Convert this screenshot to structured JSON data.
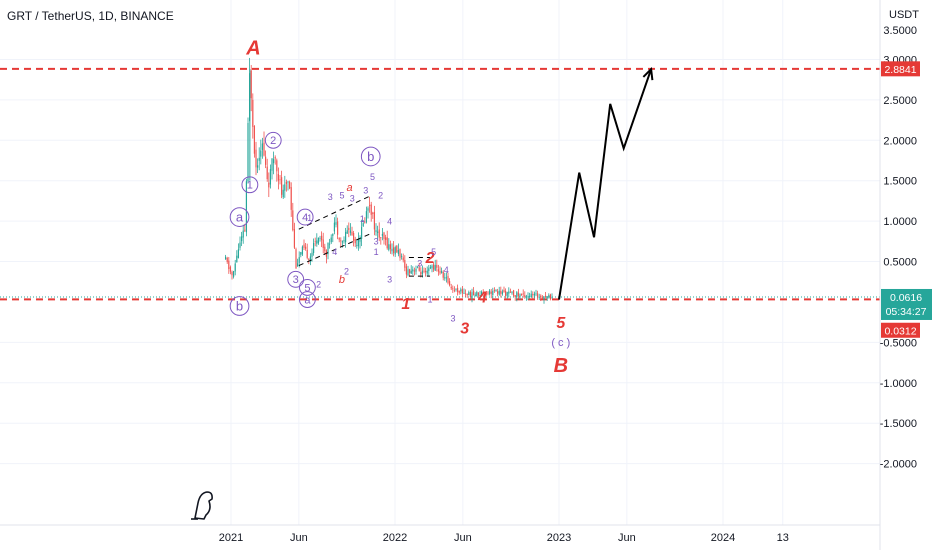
{
  "header": {
    "symbol_title": "GRT / TetherUS, 1D, BINANCE",
    "currency_unit": "USDT"
  },
  "price_badges": {
    "resistance_level": "2.8841",
    "last_price": "0.0616",
    "countdown": "05:34:27",
    "support_level": "0.0312"
  },
  "colors": {
    "background": "#ffffff",
    "candle_up": "#26a69a",
    "candle_down": "#ef5350",
    "level_line": "#e53935",
    "wave_purple": "#7e57c2",
    "wave_red": "#e53935",
    "projection": "#000000"
  },
  "chart_data": {
    "type": "candlestick",
    "symbol": "GRT / TetherUS",
    "interval": "1D",
    "exchange": "BINANCE",
    "y_axis": {
      "unit": "USDT",
      "ylim": [
        -2.45,
        3.55
      ],
      "tick_labels": [
        "3.0000",
        "2.5000",
        "2.0000",
        "1.5000",
        "1.0000",
        "0.5000",
        "-0.5000",
        "-1.0000",
        "-1.5000",
        "-2.0000"
      ],
      "tick_values": [
        3.0,
        2.5,
        2.0,
        1.5,
        1.0,
        0.5,
        -0.5,
        -1.0,
        -1.5,
        -2.0
      ],
      "top_partial_label": "3.5000"
    },
    "x_axis": {
      "tick_labels": [
        "2021",
        "Jun",
        "2022",
        "Jun",
        "2023",
        "Jun",
        "2024",
        "13"
      ],
      "tick_dates": [
        "2021-01-01",
        "2021-06-01",
        "2022-01-01",
        "2022-06-01",
        "2023-01-01",
        "2023-06-01",
        "2024-01-01",
        "2024-05-13"
      ]
    },
    "price_path": [
      [
        "2020-12-20",
        0.52
      ],
      [
        "2021-01-05",
        0.3
      ],
      [
        "2021-01-15",
        0.62
      ],
      [
        "2021-02-01",
        0.9
      ],
      [
        "2021-02-12",
        2.88
      ],
      [
        "2021-02-25",
        1.65
      ],
      [
        "2021-03-10",
        2.0
      ],
      [
        "2021-03-25",
        1.45
      ],
      [
        "2021-04-08",
        1.85
      ],
      [
        "2021-04-25",
        1.3
      ],
      [
        "2021-05-10",
        1.55
      ],
      [
        "2021-05-25",
        0.45
      ],
      [
        "2021-06-10",
        0.65
      ],
      [
        "2021-06-25",
        0.55
      ],
      [
        "2021-07-15",
        0.85
      ],
      [
        "2021-08-01",
        0.6
      ],
      [
        "2021-08-20",
        1.0
      ],
      [
        "2021-09-05",
        0.72
      ],
      [
        "2021-09-20",
        0.92
      ],
      [
        "2021-10-05",
        0.72
      ],
      [
        "2021-10-20",
        0.9
      ],
      [
        "2021-11-05",
        1.25
      ],
      [
        "2021-11-20",
        0.85
      ],
      [
        "2021-12-05",
        0.78
      ],
      [
        "2021-12-25",
        0.65
      ],
      [
        "2022-01-10",
        0.62
      ],
      [
        "2022-01-25",
        0.38
      ],
      [
        "2022-02-15",
        0.42
      ],
      [
        "2022-03-10",
        0.33
      ],
      [
        "2022-03-25",
        0.45
      ],
      [
        "2022-04-10",
        0.38
      ],
      [
        "2022-04-25",
        0.28
      ],
      [
        "2022-05-10",
        0.16
      ],
      [
        "2022-05-25",
        0.14
      ],
      [
        "2022-06-15",
        0.09
      ],
      [
        "2022-07-05",
        0.1
      ],
      [
        "2022-08-01",
        0.13
      ],
      [
        "2022-09-01",
        0.11
      ],
      [
        "2022-10-01",
        0.09
      ],
      [
        "2022-11-01",
        0.08
      ],
      [
        "2022-12-01",
        0.07
      ],
      [
        "2022-12-20",
        0.06
      ]
    ],
    "horizontal_levels": [
      {
        "label": "2.8841",
        "value": 2.8841,
        "style": "dashed",
        "color": "#e53935"
      },
      {
        "label": "0.0312",
        "value": 0.0312,
        "style": "dashed",
        "color": "#e53935"
      },
      {
        "label": "0.0616",
        "value": 0.0616,
        "style": "dotted",
        "color": "#26a69a"
      }
    ],
    "projection_path": [
      [
        "2023-01-01",
        0.03
      ],
      [
        "2023-02-15",
        1.6
      ],
      [
        "2023-03-20",
        0.8
      ],
      [
        "2023-04-25",
        2.45
      ],
      [
        "2023-05-25",
        1.9
      ],
      [
        "2023-07-25",
        2.88
      ]
    ],
    "channel_lines": [
      [
        [
          "2021-06-01",
          0.9
        ],
        [
          "2021-11-10",
          1.32
        ]
      ],
      [
        [
          "2021-06-01",
          0.45
        ],
        [
          "2021-11-10",
          0.85
        ]
      ],
      [
        [
          "2022-02-01",
          0.55
        ],
        [
          "2022-03-20",
          0.55
        ]
      ],
      [
        [
          "2022-02-01",
          0.32
        ],
        [
          "2022-03-20",
          0.32
        ]
      ]
    ],
    "wave_labels": [
      {
        "text": "A",
        "date": "2021-02-20",
        "price": 3.15,
        "color": "red",
        "size": "xl",
        "circled": false
      },
      {
        "text": "a",
        "date": "2021-01-20",
        "price": 1.05,
        "color": "purple",
        "size": "m",
        "circled": true
      },
      {
        "text": "b",
        "date": "2021-01-20",
        "price": -0.05,
        "color": "purple",
        "size": "m",
        "circled": true
      },
      {
        "text": "1",
        "date": "2021-02-12",
        "price": 1.45,
        "color": "purple",
        "size": "s",
        "circled": true
      },
      {
        "text": "2",
        "date": "2021-04-05",
        "price": 2.0,
        "color": "purple",
        "size": "s",
        "circled": true
      },
      {
        "text": "3",
        "date": "2021-05-25",
        "price": 0.28,
        "color": "purple",
        "size": "s",
        "circled": true
      },
      {
        "text": "4",
        "date": "2021-06-15",
        "price": 1.05,
        "color": "purple",
        "size": "s",
        "circled": true
      },
      {
        "text": "5",
        "date": "2021-06-20",
        "price": 0.18,
        "color": "purple",
        "size": "s",
        "circled": true
      },
      {
        "text": "a",
        "date": "2021-06-20",
        "price": 0.03,
        "color": "purple",
        "size": "s",
        "circled": true
      },
      {
        "text": "b",
        "date": "2021-11-08",
        "price": 1.8,
        "color": "purple",
        "size": "m",
        "circled": true
      },
      {
        "text": "1",
        "date": "2021-06-25",
        "price": 1.04,
        "color": "purple",
        "size": "xs",
        "circled": false
      },
      {
        "text": "2",
        "date": "2021-07-15",
        "price": 0.22,
        "color": "purple",
        "size": "xs",
        "circled": false
      },
      {
        "text": "3",
        "date": "2021-08-10",
        "price": 1.3,
        "color": "purple",
        "size": "xs",
        "circled": false
      },
      {
        "text": "a",
        "date": "2021-09-22",
        "price": 1.42,
        "color": "red",
        "size": "s",
        "circled": false
      },
      {
        "text": "5",
        "date": "2021-09-05",
        "price": 1.32,
        "color": "purple",
        "size": "xs",
        "circled": false
      },
      {
        "text": "3",
        "date": "2021-09-28",
        "price": 1.28,
        "color": "purple",
        "size": "xs",
        "circled": false
      },
      {
        "text": "4",
        "date": "2021-08-20",
        "price": 0.62,
        "color": "purple",
        "size": "xs",
        "circled": false
      },
      {
        "text": "b",
        "date": "2021-09-05",
        "price": 0.28,
        "color": "red",
        "size": "s",
        "circled": false
      },
      {
        "text": "2",
        "date": "2021-09-15",
        "price": 0.38,
        "color": "purple",
        "size": "xs",
        "circled": false
      },
      {
        "text": "5",
        "date": "2021-11-12",
        "price": 1.55,
        "color": "purple",
        "size": "xs",
        "circled": false
      },
      {
        "text": "3",
        "date": "2021-10-28",
        "price": 1.38,
        "color": "purple",
        "size": "xs",
        "circled": false
      },
      {
        "text": "2",
        "date": "2021-11-30",
        "price": 1.32,
        "color": "purple",
        "size": "xs",
        "circled": false
      },
      {
        "text": "1",
        "date": "2021-10-20",
        "price": 1.03,
        "color": "purple",
        "size": "xs",
        "circled": false
      },
      {
        "text": "3",
        "date": "2021-11-20",
        "price": 0.75,
        "color": "purple",
        "size": "xs",
        "circled": false
      },
      {
        "text": "4",
        "date": "2021-12-20",
        "price": 1.0,
        "color": "purple",
        "size": "xs",
        "circled": false
      },
      {
        "text": "1",
        "date": "2021-11-20",
        "price": 0.62,
        "color": "purple",
        "size": "xs",
        "circled": false
      },
      {
        "text": "3",
        "date": "2021-12-20",
        "price": 0.28,
        "color": "purple",
        "size": "xs",
        "circled": false
      },
      {
        "text": "1",
        "date": "2022-01-25",
        "price": -0.02,
        "color": "red",
        "size": "l",
        "circled": false
      },
      {
        "text": "2",
        "date": "2022-03-20",
        "price": 0.55,
        "color": "red",
        "size": "l",
        "circled": false
      },
      {
        "text": "5",
        "date": "2022-03-28",
        "price": 0.62,
        "color": "purple",
        "size": "xs",
        "circled": false
      },
      {
        "text": "3",
        "date": "2022-02-25",
        "price": 0.48,
        "color": "purple",
        "size": "xs",
        "circled": false
      },
      {
        "text": "4",
        "date": "2022-04-25",
        "price": 0.4,
        "color": "purple",
        "size": "xs",
        "circled": false
      },
      {
        "text": "1",
        "date": "2022-03-20",
        "price": 0.03,
        "color": "purple",
        "size": "xs",
        "circled": false
      },
      {
        "text": "3",
        "date": "2022-05-10",
        "price": -0.2,
        "color": "purple",
        "size": "xs",
        "circled": false
      },
      {
        "text": "3",
        "date": "2022-06-05",
        "price": -0.32,
        "color": "red",
        "size": "l",
        "circled": false
      },
      {
        "text": "4",
        "date": "2022-07-15",
        "price": 0.06,
        "color": "red",
        "size": "l",
        "circled": false
      },
      {
        "text": "5",
        "date": "2023-01-05",
        "price": -0.25,
        "color": "red",
        "size": "l",
        "circled": false
      },
      {
        "text": "( c )",
        "date": "2023-01-05",
        "price": -0.5,
        "color": "purple",
        "size": "s",
        "circled": false
      },
      {
        "text": "B",
        "date": "2023-01-05",
        "price": -0.78,
        "color": "red",
        "size": "xl",
        "circled": false
      }
    ]
  }
}
